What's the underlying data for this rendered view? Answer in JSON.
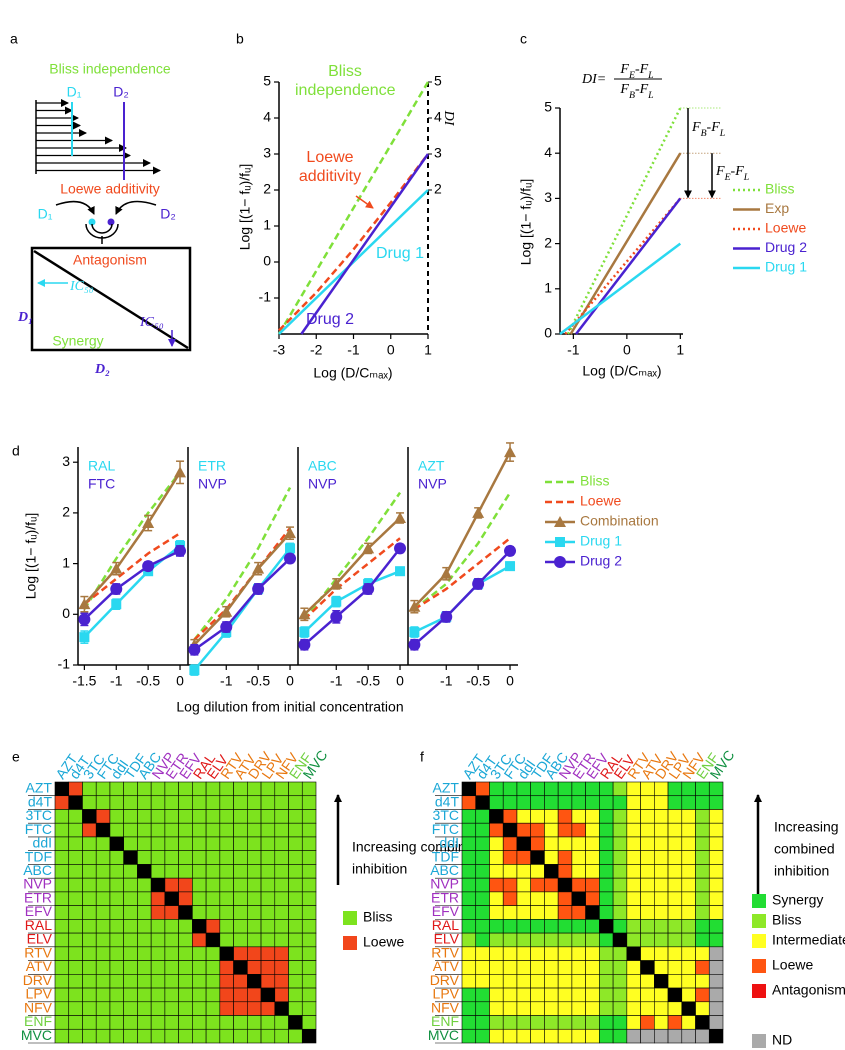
{
  "panel_labels": [
    "a",
    "b",
    "c",
    "d",
    "e",
    "f"
  ],
  "diagram": {
    "bliss_title": "Bliss independence",
    "d1": "D₁",
    "d2": "D₂",
    "loewe_title": "Loewe additivity",
    "antagonism": "Antagonism",
    "synergy": "Synergy",
    "ic50": "IC₅₀"
  },
  "chart_data": [
    {
      "type": "line",
      "xlabel": "Log (D/Cₘₐₓ)",
      "ylabel": "Log [(1− fᵤ)/fᵤ]",
      "y2label": "DI",
      "xlim": [
        -3,
        1
      ],
      "ylim": [
        -2,
        5
      ],
      "xticks": [
        -3,
        -2,
        -1,
        0,
        1
      ],
      "yticks": [
        -1,
        0,
        1,
        2,
        3,
        4,
        5
      ],
      "y2lim": [
        -2,
        5
      ],
      "y2ticks": [
        2,
        3,
        4,
        5
      ],
      "series": [
        {
          "name": "Bliss independence",
          "color": "#7fe03a",
          "dash": "dashed",
          "x": [
            -3,
            1
          ],
          "values": [
            -2,
            5
          ]
        },
        {
          "name": "Loewe additivity",
          "color": "#f04a1e",
          "dash": "dashed",
          "x": [
            -3,
            -2,
            -1,
            0,
            1
          ],
          "values": [
            -1.9,
            -0.85,
            0.35,
            1.65,
            3
          ]
        },
        {
          "name": "Drug 1",
          "color": "#2ad8f0",
          "x": [
            -3,
            1
          ],
          "values": [
            -2,
            2
          ]
        },
        {
          "name": "Drug 2",
          "color": "#4a22d0",
          "x": [
            -2.4,
            1
          ],
          "values": [
            -2,
            3
          ]
        }
      ]
    },
    {
      "type": "line",
      "xlabel": "Log (D/Cₘₐₓ)",
      "ylabel": "Log [(1− fᵤ)/fᵤ]",
      "xlim": [
        -1.25,
        1.05
      ],
      "ylim": [
        0,
        5
      ],
      "xticks": [
        -1,
        0,
        1
      ],
      "yticks": [
        0,
        1,
        2,
        3,
        4,
        5
      ],
      "formula": {
        "lhs": "DI=",
        "numerator": [
          "F",
          "E",
          "-F",
          "L"
        ],
        "denominator": [
          "F",
          "B",
          "-F",
          "L"
        ]
      },
      "arrow_labels": [
        [
          "F",
          "B",
          "-F",
          "L"
        ],
        [
          "F",
          "E",
          "-F",
          "L"
        ]
      ],
      "series": [
        {
          "name": "Bliss",
          "color": "#7fe03a",
          "dash": "dotted",
          "x": [
            -1.1,
            1
          ],
          "values": [
            0,
            5
          ]
        },
        {
          "name": "Exp",
          "color": "#a87840",
          "x": [
            -1.05,
            1
          ],
          "values": [
            0,
            4
          ]
        },
        {
          "name": "Loewe",
          "color": "#f04a1e",
          "dash": "dotted",
          "x": [
            -1.15,
            1
          ],
          "values": [
            0,
            3
          ]
        },
        {
          "name": "Drug 2",
          "color": "#4a22d0",
          "x": [
            -0.95,
            1
          ],
          "values": [
            0,
            3
          ]
        },
        {
          "name": "Drug 1",
          "color": "#2ad8f0",
          "x": [
            -1.25,
            1
          ],
          "values": [
            0,
            2
          ]
        }
      ]
    },
    {
      "type": "line",
      "drug1": "RAL",
      "drug2": "FTC",
      "xlabel": "Log dilution from initial concentration",
      "ylabel": "Log [(1− fᵤ)/fᵤ]",
      "xlim": [
        -1.6,
        0.125
      ],
      "ylim": [
        -1,
        3.3
      ],
      "xticks": [
        -1.5,
        -1,
        -0.5,
        0
      ],
      "yticks": [
        -1,
        0,
        1,
        2,
        3
      ],
      "x": [
        -1.5,
        -1,
        -0.5,
        0
      ],
      "series": [
        {
          "name": "Bliss",
          "color": "#7fe03a",
          "dash": "dashed",
          "values": [
            0.1,
            1.1,
            2.0,
            2.8
          ]
        },
        {
          "name": "Loewe",
          "color": "#f04a1e",
          "dash": "dashed",
          "values": [
            0.2,
            0.7,
            1.2,
            1.6
          ]
        },
        {
          "name": "Combination",
          "color": "#a87840",
          "marker": "triangle",
          "values": [
            0.2,
            0.9,
            1.8,
            2.8
          ],
          "errors": [
            0.15,
            0.12,
            0.15,
            0.22
          ]
        },
        {
          "name": "Drug 1",
          "color": "#2ad8f0",
          "marker": "square",
          "values": [
            -0.45,
            0.2,
            0.85,
            1.35
          ],
          "errors": [
            0.12,
            0.1,
            0.08,
            0.1
          ]
        },
        {
          "name": "Drug 2",
          "color": "#4a22d0",
          "marker": "circle",
          "values": [
            -0.1,
            0.5,
            0.95,
            1.25
          ],
          "errors": [
            0.12,
            0.1,
            0.08,
            0.1
          ]
        }
      ]
    },
    {
      "type": "line",
      "drug1": "ETR",
      "drug2": "NVP",
      "xlim": [
        -1.6,
        0.125
      ],
      "ylim": [
        -1,
        3.3
      ],
      "xticks": [
        -1,
        -0.5,
        0
      ],
      "x": [
        -1.5,
        -1,
        -0.5,
        0
      ],
      "series": [
        {
          "name": "Bliss",
          "color": "#7fe03a",
          "dash": "dashed",
          "values": [
            -0.5,
            0.3,
            1.3,
            2.5
          ]
        },
        {
          "name": "Loewe",
          "color": "#f04a1e",
          "dash": "dashed",
          "values": [
            -0.5,
            0.1,
            0.9,
            1.7
          ]
        },
        {
          "name": "Combination",
          "color": "#a87840",
          "marker": "triangle",
          "values": [
            -0.6,
            0.05,
            0.9,
            1.6
          ],
          "errors": [
            0.1,
            0.1,
            0.12,
            0.12
          ]
        },
        {
          "name": "Drug 1",
          "color": "#2ad8f0",
          "marker": "square",
          "values": [
            -1.1,
            -0.35,
            0.5,
            1.3
          ],
          "errors": [
            0.1,
            0.1,
            0.1,
            0.1
          ]
        },
        {
          "name": "Drug 2",
          "color": "#4a22d0",
          "marker": "circle",
          "values": [
            -0.7,
            -0.25,
            0.5,
            1.1
          ],
          "errors": [
            0.1,
            0.1,
            0.1,
            0.08
          ]
        }
      ]
    },
    {
      "type": "line",
      "drug1": "ABC",
      "drug2": "NVP",
      "xlim": [
        -1.6,
        0.125
      ],
      "ylim": [
        -1,
        3.3
      ],
      "xticks": [
        -1,
        -0.5,
        0
      ],
      "x": [
        -1.5,
        -1,
        -0.5,
        0
      ],
      "series": [
        {
          "name": "Bliss",
          "color": "#7fe03a",
          "dash": "dashed",
          "values": [
            -0.1,
            0.7,
            1.5,
            2.4
          ]
        },
        {
          "name": "Loewe",
          "color": "#f04a1e",
          "dash": "dashed",
          "values": [
            -0.1,
            0.5,
            1.0,
            1.5
          ]
        },
        {
          "name": "Combination",
          "color": "#a87840",
          "marker": "triangle",
          "values": [
            0.0,
            0.6,
            1.3,
            1.9
          ],
          "errors": [
            0.12,
            0.1,
            0.1,
            0.1
          ]
        },
        {
          "name": "Drug 1",
          "color": "#2ad8f0",
          "marker": "square",
          "values": [
            -0.35,
            0.25,
            0.6,
            0.85
          ],
          "errors": [
            0.1,
            0.1,
            0.1,
            0.08
          ]
        },
        {
          "name": "Drug 2",
          "color": "#4a22d0",
          "marker": "circle",
          "values": [
            -0.6,
            -0.05,
            0.5,
            1.3
          ],
          "errors": [
            0.1,
            0.12,
            0.1,
            0.08
          ]
        }
      ]
    },
    {
      "type": "line",
      "drug1": "AZT",
      "drug2": "NVP",
      "xlim": [
        -1.6,
        0.125
      ],
      "ylim": [
        -1,
        3.3
      ],
      "xticks": [
        -1,
        -0.5,
        0
      ],
      "x": [
        -1.5,
        -1,
        -0.5,
        0
      ],
      "series": [
        {
          "name": "Bliss",
          "color": "#7fe03a",
          "dash": "dashed",
          "values": [
            0.1,
            0.6,
            1.4,
            2.4
          ]
        },
        {
          "name": "Loewe",
          "color": "#f04a1e",
          "dash": "dashed",
          "values": [
            0.1,
            0.5,
            1.0,
            1.5
          ]
        },
        {
          "name": "Combination",
          "color": "#a87840",
          "marker": "triangle",
          "values": [
            0.15,
            0.8,
            2.0,
            3.2
          ],
          "errors": [
            0.12,
            0.12,
            0.1,
            0.18
          ]
        },
        {
          "name": "Drug 1",
          "color": "#2ad8f0",
          "marker": "square",
          "values": [
            -0.35,
            -0.05,
            0.6,
            0.95
          ],
          "errors": [
            0.1,
            0.1,
            0.1,
            0.08
          ]
        },
        {
          "name": "Drug 2",
          "color": "#4a22d0",
          "marker": "circle",
          "values": [
            -0.6,
            -0.05,
            0.6,
            1.25
          ],
          "errors": [
            0.1,
            0.1,
            0.1,
            0.08
          ]
        }
      ]
    }
  ],
  "drugs": [
    {
      "name": "AZT",
      "color": "#1aa7d6"
    },
    {
      "name": "d4T",
      "color": "#1aa7d6"
    },
    {
      "name": "3TC",
      "color": "#1aa7d6"
    },
    {
      "name": "FTC",
      "color": "#1aa7d6"
    },
    {
      "name": "ddI",
      "color": "#1aa7d6"
    },
    {
      "name": "TDF",
      "color": "#1aa7d6"
    },
    {
      "name": "ABC",
      "color": "#1aa7d6"
    },
    {
      "name": "NVP",
      "color": "#a030c0"
    },
    {
      "name": "ETR",
      "color": "#a030c0"
    },
    {
      "name": "EFV",
      "color": "#a030c0"
    },
    {
      "name": "RAL",
      "color": "#e01818"
    },
    {
      "name": "ELV",
      "color": "#e01818"
    },
    {
      "name": "RTV",
      "color": "#e87810"
    },
    {
      "name": "ATV",
      "color": "#e87810"
    },
    {
      "name": "DRV",
      "color": "#e87810"
    },
    {
      "name": "LPV",
      "color": "#e87810"
    },
    {
      "name": "NFV",
      "color": "#e87810"
    },
    {
      "name": "ENF",
      "color": "#70d040"
    },
    {
      "name": "MVC",
      "color": "#109040"
    }
  ],
  "heatmaps": [
    {
      "legend_title": [
        "Increasing combined",
        "inhibition"
      ],
      "categories": {
        "B": {
          "name": "Bliss",
          "color": "#7de31e"
        },
        "L": {
          "name": "Loewe",
          "color": "#f2461b"
        },
        "X": {
          "color": "#000000"
        }
      },
      "matrix": [
        "XLBBBBBBBBBBBBBBBBB",
        "LXBBBBBBBBBBBBBBBBB",
        "BBXLBBBBBBBBBBBBBBB",
        "BBLXBBBBBBBBBBBBBBB",
        "BBBBXBBBBBBBBBBBBBB",
        "BBBBBXBBBBBBBBBBBBB",
        "BBBBBBXBBBBBBBBBBBB",
        "BBBBBBBXLLBBBBBBBBB",
        "BBBBBBBLXLBBBBBBBBB",
        "BBBBBBBLLXBBBBBBBBB",
        "BBBBBBBBBBXLBBBBBBB",
        "BBBBBBBBBBLXBBBBBBB",
        "BBBBBBBBBBBBXLLLLBB",
        "BBBBBBBBBBBBLXLLLBB",
        "BBBBBBBBBBBBLLXLLBB",
        "BBBBBBBBBBBBLLLXLBB",
        "BBBBBBBBBBBBLLLLXBB",
        "BBBBBBBBBBBBBBBBBXB",
        "BBBBBBBBBBBBBBBBBBX"
      ]
    },
    {
      "legend_title": [
        "Increasing",
        "combined",
        "inhibition"
      ],
      "categories": {
        "S": {
          "name": "Synergy",
          "color": "#22dd33"
        },
        "B": {
          "name": "Bliss",
          "color": "#8ee828"
        },
        "I": {
          "name": "Intermediate",
          "color": "#ffff22"
        },
        "L": {
          "name": "Loewe",
          "color": "#ff5511"
        },
        "A": {
          "name": "Antagonism",
          "color": "#ee1111"
        },
        "N": {
          "name": "ND",
          "color": "#aaaaaa"
        },
        "X": {
          "color": "#000000"
        }
      },
      "matrix": [
        "XLSSSSSSSSSBIIISSSS",
        "LXSSSSSSSSSSIIISSSS",
        "SSXLIIILIISBIIIIIBI",
        "SSLXLLILLISBIIIIIBI",
        "SSILXLIIIISBIIIIIBI",
        "SSILLXILIISBIIIIIBI",
        "SSIIIIXLIISBIIIIIBI",
        "SSLLILLXLLSBIIIIIBI",
        "SSILIIILXLSBIIIIIBI",
        "SSIIIIILLXSBIIIIIBI",
        "SSSSSSSSSSXSBBBBBSS",
        "BSBBBBBBBBSXBBBBBSS",
        "IIIIIIIIIIBBXIIIIIN",
        "IIIIIIIIIIBBIXIIILN",
        "IIIIIIIIIIBBIIXIIIN",
        "SSIIIIIIIIBBIIIXILN",
        "SSIIIIIIIIBBIIIIXIN",
        "SSBBBBBBBBSSILILIXN",
        "SSIIIIIIIISSNNNNNNX"
      ]
    }
  ]
}
